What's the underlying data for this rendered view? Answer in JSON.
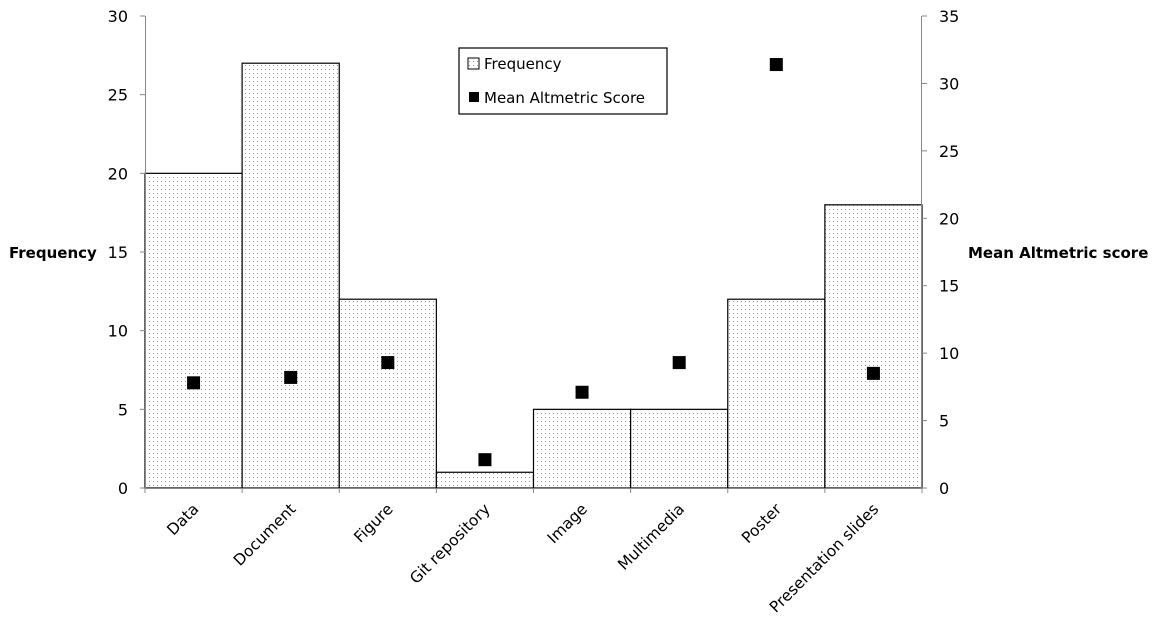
{
  "chart_data": {
    "type": "bar",
    "categories": [
      "Data",
      "Document",
      "Figure",
      "Git repository",
      "Image",
      "Multimedia",
      "Poster",
      "Presentation slides"
    ],
    "series": [
      {
        "name": "Frequency",
        "type": "bar",
        "axis": "left",
        "values": [
          20,
          27,
          12,
          1,
          5,
          5,
          12,
          18
        ]
      },
      {
        "name": "Mean Altmetric Score",
        "type": "scatter",
        "axis": "right",
        "values": [
          7.8,
          8.2,
          9.3,
          2.1,
          7.1,
          9.3,
          31.4,
          8.5
        ]
      }
    ],
    "ylabel": "Frequency",
    "y2label": "Mean Altmetric score",
    "ylim": [
      0,
      30
    ],
    "y2lim": [
      0,
      35
    ],
    "yticks": [
      "0",
      "5",
      "10",
      "15",
      "20",
      "25",
      "30"
    ],
    "y2ticks": [
      "0",
      "5",
      "10",
      "15",
      "20",
      "25",
      "30",
      "35"
    ],
    "grid": false,
    "legend_position": "top-center"
  }
}
